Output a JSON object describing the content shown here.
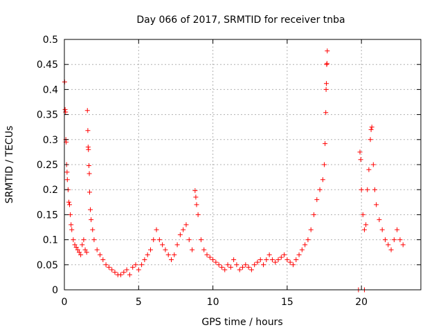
{
  "chart_data": {
    "type": "scatter",
    "title": "Day 066 of 2017, SRMTID for receiver tnba",
    "xlabel": "GPS time / hours",
    "ylabel": "SRMTID / TECUs",
    "xlim": [
      0,
      24
    ],
    "ylim": [
      0,
      0.5
    ],
    "xticks": [
      0,
      5,
      10,
      15,
      20
    ],
    "xtick_labels": [
      "0",
      "5",
      "10",
      "15",
      "20"
    ],
    "yticks": [
      0,
      0.05,
      0.1,
      0.15,
      0.2,
      0.25,
      0.3,
      0.35,
      0.4,
      0.45,
      0.5
    ],
    "ytick_labels": [
      "0",
      "0.05",
      "0.1",
      "0.15",
      "0.2",
      "0.25",
      "0.3",
      "0.35",
      "0.4",
      "0.45",
      "0.5"
    ],
    "grid": true,
    "marker": "+",
    "color": "#ff0000",
    "series": [
      {
        "name": "SRMTID",
        "points": [
          [
            0.02,
            0.415
          ],
          [
            0.05,
            0.36
          ],
          [
            0.08,
            0.355
          ],
          [
            0.1,
            0.3
          ],
          [
            0.12,
            0.295
          ],
          [
            0.15,
            0.25
          ],
          [
            0.18,
            0.235
          ],
          [
            0.2,
            0.22
          ],
          [
            0.25,
            0.2
          ],
          [
            0.3,
            0.175
          ],
          [
            0.35,
            0.17
          ],
          [
            0.4,
            0.15
          ],
          [
            0.45,
            0.13
          ],
          [
            0.5,
            0.12
          ],
          [
            0.6,
            0.1
          ],
          [
            0.7,
            0.09
          ],
          [
            0.8,
            0.085
          ],
          [
            0.9,
            0.08
          ],
          [
            1.0,
            0.075
          ],
          [
            1.1,
            0.07
          ],
          [
            1.2,
            0.09
          ],
          [
            1.3,
            0.1
          ],
          [
            1.4,
            0.08
          ],
          [
            1.5,
            0.075
          ],
          [
            1.55,
            0.358
          ],
          [
            1.58,
            0.318
          ],
          [
            1.6,
            0.285
          ],
          [
            1.62,
            0.28
          ],
          [
            1.65,
            0.248
          ],
          [
            1.68,
            0.232
          ],
          [
            1.7,
            0.195
          ],
          [
            1.75,
            0.16
          ],
          [
            1.8,
            0.14
          ],
          [
            1.9,
            0.12
          ],
          [
            2.0,
            0.1
          ],
          [
            2.2,
            0.08
          ],
          [
            2.4,
            0.07
          ],
          [
            2.6,
            0.06
          ],
          [
            2.8,
            0.05
          ],
          [
            3.0,
            0.045
          ],
          [
            3.2,
            0.04
          ],
          [
            3.4,
            0.035
          ],
          [
            3.6,
            0.03
          ],
          [
            3.8,
            0.03
          ],
          [
            4.0,
            0.035
          ],
          [
            4.2,
            0.04
          ],
          [
            4.4,
            0.03
          ],
          [
            4.6,
            0.045
          ],
          [
            4.8,
            0.05
          ],
          [
            5.0,
            0.04
          ],
          [
            5.2,
            0.05
          ],
          [
            5.4,
            0.06
          ],
          [
            5.6,
            0.07
          ],
          [
            5.8,
            0.08
          ],
          [
            6.0,
            0.1
          ],
          [
            6.2,
            0.12
          ],
          [
            6.4,
            0.1
          ],
          [
            6.6,
            0.09
          ],
          [
            6.8,
            0.08
          ],
          [
            7.0,
            0.07
          ],
          [
            7.2,
            0.06
          ],
          [
            7.4,
            0.07
          ],
          [
            7.6,
            0.09
          ],
          [
            7.8,
            0.11
          ],
          [
            8.0,
            0.12
          ],
          [
            8.2,
            0.13
          ],
          [
            8.4,
            0.1
          ],
          [
            8.6,
            0.08
          ],
          [
            8.8,
            0.198
          ],
          [
            8.85,
            0.185
          ],
          [
            8.9,
            0.17
          ],
          [
            9.0,
            0.15
          ],
          [
            9.2,
            0.1
          ],
          [
            9.4,
            0.08
          ],
          [
            9.6,
            0.07
          ],
          [
            9.8,
            0.065
          ],
          [
            10.0,
            0.06
          ],
          [
            10.2,
            0.055
          ],
          [
            10.4,
            0.05
          ],
          [
            10.6,
            0.045
          ],
          [
            10.8,
            0.04
          ],
          [
            11.0,
            0.05
          ],
          [
            11.2,
            0.045
          ],
          [
            11.4,
            0.06
          ],
          [
            11.6,
            0.05
          ],
          [
            11.8,
            0.04
          ],
          [
            12.0,
            0.045
          ],
          [
            12.2,
            0.05
          ],
          [
            12.4,
            0.045
          ],
          [
            12.6,
            0.04
          ],
          [
            12.8,
            0.05
          ],
          [
            13.0,
            0.055
          ],
          [
            13.2,
            0.06
          ],
          [
            13.4,
            0.05
          ],
          [
            13.6,
            0.06
          ],
          [
            13.8,
            0.07
          ],
          [
            14.0,
            0.06
          ],
          [
            14.2,
            0.055
          ],
          [
            14.4,
            0.06
          ],
          [
            14.6,
            0.065
          ],
          [
            14.8,
            0.07
          ],
          [
            15.0,
            0.06
          ],
          [
            15.2,
            0.055
          ],
          [
            15.4,
            0.05
          ],
          [
            15.6,
            0.06
          ],
          [
            15.8,
            0.07
          ],
          [
            16.0,
            0.08
          ],
          [
            16.2,
            0.09
          ],
          [
            16.4,
            0.1
          ],
          [
            16.6,
            0.12
          ],
          [
            16.8,
            0.15
          ],
          [
            17.0,
            0.18
          ],
          [
            17.2,
            0.2
          ],
          [
            17.4,
            0.22
          ],
          [
            17.5,
            0.25
          ],
          [
            17.55,
            0.292
          ],
          [
            17.6,
            0.354
          ],
          [
            17.62,
            0.4
          ],
          [
            17.64,
            0.412
          ],
          [
            17.66,
            0.45
          ],
          [
            17.68,
            0.452
          ],
          [
            17.7,
            0.477
          ],
          [
            19.8,
            0.0
          ],
          [
            20.2,
            0.0
          ],
          [
            19.9,
            0.275
          ],
          [
            19.95,
            0.26
          ],
          [
            20.0,
            0.2
          ],
          [
            20.1,
            0.15
          ],
          [
            20.2,
            0.12
          ],
          [
            20.3,
            0.13
          ],
          [
            20.4,
            0.2
          ],
          [
            20.5,
            0.24
          ],
          [
            20.6,
            0.3
          ],
          [
            20.65,
            0.32
          ],
          [
            20.7,
            0.325
          ],
          [
            20.8,
            0.25
          ],
          [
            20.9,
            0.2
          ],
          [
            21.0,
            0.17
          ],
          [
            21.2,
            0.14
          ],
          [
            21.4,
            0.12
          ],
          [
            21.6,
            0.1
          ],
          [
            21.8,
            0.09
          ],
          [
            22.0,
            0.08
          ],
          [
            22.2,
            0.1
          ],
          [
            22.4,
            0.12
          ],
          [
            22.6,
            0.1
          ],
          [
            22.8,
            0.09
          ]
        ]
      }
    ]
  }
}
